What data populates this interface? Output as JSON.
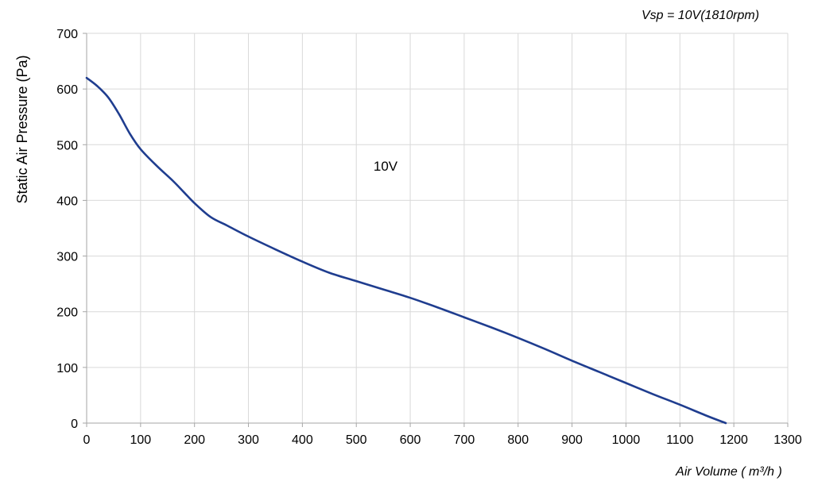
{
  "chart_data": {
    "type": "line",
    "title": "",
    "subtitle": "Vsp = 10V(1810rpm)",
    "xlabel": "Air Volume ( m³/h )",
    "ylabel": "Static Air Pressure  (Pa)",
    "xlim": [
      0,
      1300
    ],
    "ylim": [
      0,
      700
    ],
    "x_ticks": [
      "0",
      "100",
      "200",
      "300",
      "400",
      "500",
      "600",
      "700",
      "800",
      "900",
      "1000",
      "1100",
      "1200",
      "1300"
    ],
    "y_ticks": [
      "0",
      "100",
      "200",
      "300",
      "400",
      "500",
      "600",
      "700"
    ],
    "grid": true,
    "annotations": [
      {
        "text": "10V",
        "x": 555,
        "y": 460
      }
    ],
    "series": [
      {
        "name": "10V",
        "color": "#1f3d8f",
        "points": [
          [
            0,
            620
          ],
          [
            20,
            605
          ],
          [
            40,
            585
          ],
          [
            60,
            555
          ],
          [
            80,
            520
          ],
          [
            100,
            492
          ],
          [
            130,
            462
          ],
          [
            160,
            435
          ],
          [
            180,
            415
          ],
          [
            200,
            395
          ],
          [
            230,
            370
          ],
          [
            260,
            355
          ],
          [
            300,
            335
          ],
          [
            350,
            312
          ],
          [
            400,
            290
          ],
          [
            450,
            270
          ],
          [
            500,
            255
          ],
          [
            550,
            240
          ],
          [
            600,
            225
          ],
          [
            650,
            208
          ],
          [
            700,
            190
          ],
          [
            750,
            172
          ],
          [
            800,
            153
          ],
          [
            850,
            133
          ],
          [
            900,
            112
          ],
          [
            950,
            92
          ],
          [
            1000,
            72
          ],
          [
            1050,
            52
          ],
          [
            1100,
            33
          ],
          [
            1150,
            13
          ],
          [
            1185,
            0
          ]
        ]
      }
    ]
  }
}
